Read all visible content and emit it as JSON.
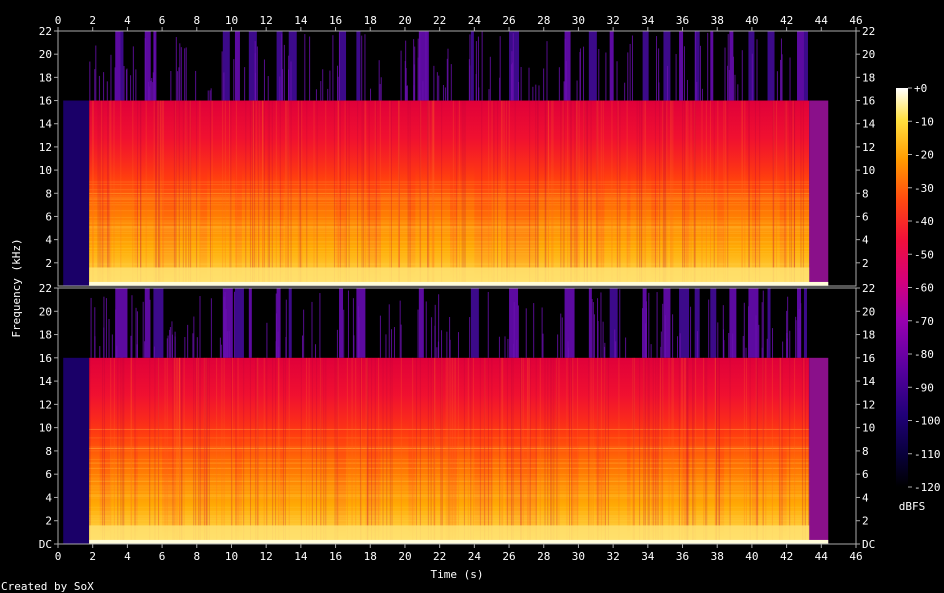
{
  "chart_data": {
    "type": "heatmap",
    "xlabel": "Time (s)",
    "ylabel": "Frequency (kHz)",
    "colorbar_label": "dBFS",
    "credit": "Created by SoX",
    "x_range": [
      0,
      46
    ],
    "x_ticks": [
      "0",
      "2",
      "4",
      "6",
      "8",
      "10",
      "12",
      "14",
      "16",
      "18",
      "20",
      "22",
      "24",
      "26",
      "28",
      "30",
      "32",
      "34",
      "36",
      "38",
      "40",
      "42",
      "44",
      "46"
    ],
    "y_range_khz": [
      0,
      22
    ],
    "y_ticks": [
      "DC",
      "2",
      "4",
      "6",
      "8",
      "10",
      "12",
      "14",
      "16",
      "18",
      "20",
      "22"
    ],
    "colorbar_range_db": [
      -120,
      0
    ],
    "colorbar_ticks": [
      "+0",
      "-10",
      "-20",
      "-30",
      "-40",
      "-50",
      "-60",
      "-70",
      "-80",
      "-90",
      "-100",
      "-110",
      "-120"
    ],
    "channels": 2,
    "lowpass_cutoff_khz": 16,
    "audio_start_s": 1.8,
    "audio_end_s": 43.3,
    "tail_end_s": 44.4,
    "quiet_segments_s": [
      [
        0,
        0.3
      ],
      [
        0.3,
        1.8
      ]
    ],
    "loud_sections_s": [
      [
        1.8,
        2.4
      ],
      [
        3.0,
        4.4
      ],
      [
        4.6,
        6.0
      ],
      [
        6.8,
        8.2
      ],
      [
        8.6,
        10.2
      ],
      [
        10.6,
        12.8
      ],
      [
        13.0,
        16.0
      ],
      [
        16.6,
        17.8
      ],
      [
        18.6,
        20.2
      ],
      [
        20.6,
        22.6
      ],
      [
        23.0,
        24.0
      ],
      [
        25.0,
        25.8
      ],
      [
        27.6,
        29.6
      ],
      [
        30.0,
        31.0
      ],
      [
        31.5,
        32.8
      ],
      [
        33.0,
        34.2
      ],
      [
        34.6,
        36.0
      ],
      [
        36.4,
        38.0
      ],
      [
        38.4,
        40.0
      ],
      [
        40.4,
        41.6
      ],
      [
        42.0,
        43.3
      ]
    ],
    "high_freq_bursts_s": [
      3.3,
      3.6,
      5.0,
      5.5,
      9.5,
      10.2,
      11.0,
      12.6,
      13.3,
      16.2,
      17.2,
      20.8,
      23.8,
      26.0,
      29.2,
      30.6,
      31.8,
      33.7,
      34.9,
      35.8,
      36.7,
      37.6,
      38.7,
      39.8,
      40.9,
      42.6,
      43.0
    ]
  }
}
